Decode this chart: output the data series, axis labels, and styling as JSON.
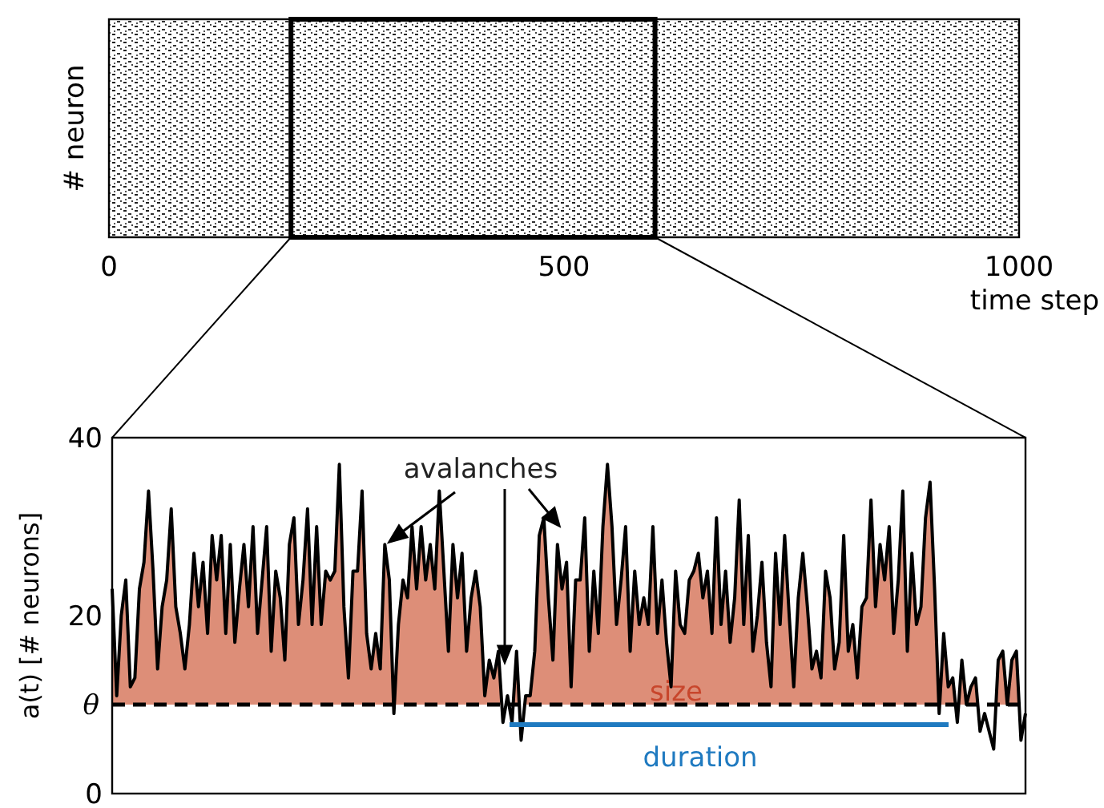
{
  "chart_data": [
    {
      "type": "other",
      "xlabel": "time step",
      "ylabel": "# neuron",
      "annotations": [
        "0",
        "500",
        "1000"
      ]
    },
    {
      "type": "area",
      "ylabel": "a(t) [# neurons]",
      "ylim": [
        0,
        40
      ],
      "yticks": [
        0,
        20,
        40
      ],
      "categories": [
        null,
        null,
        null,
        null,
        null,
        null,
        null,
        null,
        null,
        null,
        null,
        null,
        null,
        null,
        null,
        null,
        null,
        null,
        null,
        null,
        null,
        null,
        null,
        null,
        null,
        null,
        null,
        null,
        null,
        null,
        null,
        null,
        null,
        null,
        null,
        null,
        null,
        null,
        null,
        null,
        null,
        null,
        null,
        null,
        null,
        null,
        null,
        null,
        null,
        null,
        null,
        null,
        null,
        null,
        null,
        null,
        null,
        null,
        null,
        null,
        null,
        null,
        null,
        null,
        null,
        null,
        null,
        null,
        null,
        null,
        null,
        null,
        null,
        null,
        null,
        null,
        null,
        null,
        null,
        null,
        null,
        null,
        null,
        null,
        null,
        null,
        null,
        null,
        null,
        null,
        null,
        null,
        null,
        null,
        null,
        null,
        null,
        null,
        null,
        null,
        null,
        null,
        null,
        null,
        null,
        null,
        null,
        null,
        null,
        null,
        null,
        null,
        null,
        null,
        null,
        null,
        null,
        null,
        null,
        null,
        null,
        null,
        null,
        null,
        null,
        null,
        null,
        null,
        null,
        null,
        null,
        null,
        null,
        null,
        null,
        null,
        null,
        null,
        null,
        null,
        null,
        null,
        null,
        null,
        null,
        null,
        null,
        null,
        null,
        null,
        null,
        null,
        null,
        null,
        null,
        null,
        null,
        null,
        null,
        null,
        null,
        null,
        null,
        null,
        null,
        null,
        null,
        null,
        null,
        null,
        null,
        null,
        null,
        null,
        null,
        null,
        null,
        null,
        null,
        null,
        null,
        null,
        null,
        null,
        null,
        null,
        null,
        null,
        null,
        null,
        null,
        null,
        null,
        null,
        null,
        null,
        null,
        null,
        null,
        null,
        null,
        null
      ],
      "series": [
        {
          "color": "#dd8e78",
          "values": [
            23,
            11,
            20,
            24,
            12,
            13,
            23,
            26,
            34,
            25,
            14,
            21,
            24,
            32,
            21,
            18,
            14,
            19,
            27,
            21,
            26,
            18,
            29,
            24,
            29,
            18,
            28,
            17,
            23,
            28,
            21,
            30,
            18,
            24,
            30,
            16,
            25,
            22,
            15,
            28,
            31,
            19,
            24,
            32,
            19,
            30,
            19,
            25,
            24,
            25,
            37,
            21,
            13,
            25,
            25,
            34,
            18,
            14,
            18,
            14,
            28,
            24,
            9,
            19,
            24,
            22,
            30,
            23,
            30,
            24,
            28,
            23,
            34,
            25,
            16,
            28,
            22,
            27,
            16,
            22,
            25,
            21,
            11,
            15,
            13,
            16,
            8,
            11,
            8,
            16,
            6,
            11,
            11,
            16,
            29,
            31,
            22,
            15,
            28,
            23,
            26,
            12,
            24,
            24,
            31,
            16,
            25,
            18,
            30,
            37,
            30,
            19,
            24,
            30,
            16,
            25,
            19,
            22,
            19,
            30,
            18,
            24,
            17,
            12,
            25,
            19,
            18,
            24,
            25,
            27,
            22,
            25,
            18,
            31,
            19,
            25,
            17,
            22,
            33,
            19,
            29,
            16,
            20,
            26,
            17,
            12,
            27,
            19,
            29,
            20,
            12,
            22,
            27,
            21,
            14,
            16,
            13,
            25,
            22,
            14,
            17,
            29,
            16,
            19,
            13,
            21,
            22,
            33,
            21,
            28,
            24,
            30,
            18,
            24,
            34,
            16,
            27,
            19,
            21,
            31,
            35,
            23,
            9,
            18,
            12,
            13,
            8,
            15,
            10,
            12,
            13,
            7,
            9,
            7,
            5,
            15,
            16,
            10,
            15,
            16,
            6,
            9
          ]
        }
      ],
      "ref_lines": [
        {
          "axis": "y",
          "value": 10,
          "label": "θ",
          "line_style": "dashed",
          "color": "#000000"
        }
      ],
      "annotations": [
        "avalanches",
        "size",
        "duration"
      ]
    }
  ]
}
